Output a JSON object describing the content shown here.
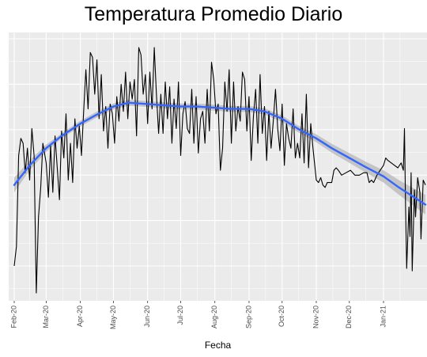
{
  "chart_data": {
    "type": "line",
    "title": "Temperatura Promedio Diario",
    "xlabel": "Fecha",
    "ylabel": "",
    "x_ticks": [
      "Feb-20",
      "Mar-20",
      "Apr-20",
      "May-20",
      "Jun-20",
      "Jul-20",
      "Aug-20",
      "Sep-20",
      "Oct-20",
      "Nov-20",
      "Dec-20",
      "Jan-21"
    ],
    "x_range": [
      "2020-02-01",
      "2021-02-08"
    ],
    "y_range": [
      0,
      100
    ],
    "y_ticks_shown": false,
    "grid": true,
    "series": [
      {
        "kind": "daily",
        "color": "#000000",
        "points": [
          [
            "2020-02-01",
            10
          ],
          [
            "2020-02-03",
            18
          ],
          [
            "2020-02-05",
            55
          ],
          [
            "2020-02-07",
            62
          ],
          [
            "2020-02-09",
            60
          ],
          [
            "2020-02-11",
            48
          ],
          [
            "2020-02-13",
            58
          ],
          [
            "2020-02-15",
            45
          ],
          [
            "2020-02-17",
            66
          ],
          [
            "2020-02-19",
            55
          ],
          [
            "2020-02-21",
            -1
          ],
          [
            "2020-02-23",
            30
          ],
          [
            "2020-02-25",
            42
          ],
          [
            "2020-02-27",
            60
          ],
          [
            "2020-03-01",
            52
          ],
          [
            "2020-03-03",
            38
          ],
          [
            "2020-03-05",
            59
          ],
          [
            "2020-03-07",
            40
          ],
          [
            "2020-03-09",
            63
          ],
          [
            "2020-03-11",
            50
          ],
          [
            "2020-03-13",
            37
          ],
          [
            "2020-03-15",
            65
          ],
          [
            "2020-03-17",
            54
          ],
          [
            "2020-03-19",
            72
          ],
          [
            "2020-03-21",
            45
          ],
          [
            "2020-03-23",
            60
          ],
          [
            "2020-03-25",
            44
          ],
          [
            "2020-03-27",
            70
          ],
          [
            "2020-03-29",
            58
          ],
          [
            "2020-03-31",
            67
          ],
          [
            "2020-04-02",
            55
          ],
          [
            "2020-04-04",
            73
          ],
          [
            "2020-04-06",
            90
          ],
          [
            "2020-04-08",
            74
          ],
          [
            "2020-04-10",
            97
          ],
          [
            "2020-04-12",
            95
          ],
          [
            "2020-04-14",
            80
          ],
          [
            "2020-04-16",
            94
          ],
          [
            "2020-04-18",
            70
          ],
          [
            "2020-04-20",
            88
          ],
          [
            "2020-04-22",
            65
          ],
          [
            "2020-04-24",
            75
          ],
          [
            "2020-04-26",
            58
          ],
          [
            "2020-04-28",
            76
          ],
          [
            "2020-04-30",
            72
          ],
          [
            "2020-05-02",
            60
          ],
          [
            "2020-05-04",
            79
          ],
          [
            "2020-05-06",
            69
          ],
          [
            "2020-05-08",
            84
          ],
          [
            "2020-05-10",
            73
          ],
          [
            "2020-05-12",
            89
          ],
          [
            "2020-05-14",
            70
          ],
          [
            "2020-05-16",
            85
          ],
          [
            "2020-05-18",
            78
          ],
          [
            "2020-05-20",
            86
          ],
          [
            "2020-05-22",
            63
          ],
          [
            "2020-05-24",
            99
          ],
          [
            "2020-05-26",
            96
          ],
          [
            "2020-05-28",
            80
          ],
          [
            "2020-05-30",
            88
          ],
          [
            "2020-06-01",
            68
          ],
          [
            "2020-06-03",
            89
          ],
          [
            "2020-06-05",
            74
          ],
          [
            "2020-06-07",
            99
          ],
          [
            "2020-06-09",
            80
          ],
          [
            "2020-06-11",
            64
          ],
          [
            "2020-06-13",
            80
          ],
          [
            "2020-06-15",
            64
          ],
          [
            "2020-06-17",
            85
          ],
          [
            "2020-06-19",
            70
          ],
          [
            "2020-06-21",
            83
          ],
          [
            "2020-06-23",
            60
          ],
          [
            "2020-06-25",
            78
          ],
          [
            "2020-06-27",
            66
          ],
          [
            "2020-06-29",
            85
          ],
          [
            "2020-07-01",
            55
          ],
          [
            "2020-07-03",
            72
          ],
          [
            "2020-07-05",
            77
          ],
          [
            "2020-07-07",
            66
          ],
          [
            "2020-07-09",
            64
          ],
          [
            "2020-07-11",
            82
          ],
          [
            "2020-07-13",
            60
          ],
          [
            "2020-07-15",
            79
          ],
          [
            "2020-07-17",
            56
          ],
          [
            "2020-07-19",
            70
          ],
          [
            "2020-07-21",
            73
          ],
          [
            "2020-07-23",
            60
          ],
          [
            "2020-07-25",
            82
          ],
          [
            "2020-07-27",
            65
          ],
          [
            "2020-07-29",
            93
          ],
          [
            "2020-07-31",
            86
          ],
          [
            "2020-08-02",
            72
          ],
          [
            "2020-08-04",
            76
          ],
          [
            "2020-08-06",
            49
          ],
          [
            "2020-08-08",
            58
          ],
          [
            "2020-08-10",
            85
          ],
          [
            "2020-08-12",
            73
          ],
          [
            "2020-08-14",
            90
          ],
          [
            "2020-08-16",
            60
          ],
          [
            "2020-08-18",
            85
          ],
          [
            "2020-08-20",
            65
          ],
          [
            "2020-08-22",
            75
          ],
          [
            "2020-08-24",
            69
          ],
          [
            "2020-08-26",
            89
          ],
          [
            "2020-08-28",
            86
          ],
          [
            "2020-08-30",
            65
          ],
          [
            "2020-09-01",
            79
          ],
          [
            "2020-09-03",
            53
          ],
          [
            "2020-09-05",
            71
          ],
          [
            "2020-09-07",
            82
          ],
          [
            "2020-09-09",
            60
          ],
          [
            "2020-09-11",
            88
          ],
          [
            "2020-09-13",
            64
          ],
          [
            "2020-09-15",
            75
          ],
          [
            "2020-09-17",
            53
          ],
          [
            "2020-09-19",
            73
          ],
          [
            "2020-09-21",
            58
          ],
          [
            "2020-09-23",
            69
          ],
          [
            "2020-09-25",
            82
          ],
          [
            "2020-09-27",
            66
          ],
          [
            "2020-09-29",
            57
          ],
          [
            "2020-10-01",
            76
          ],
          [
            "2020-10-03",
            51
          ],
          [
            "2020-10-05",
            68
          ],
          [
            "2020-10-07",
            62
          ],
          [
            "2020-10-09",
            58
          ],
          [
            "2020-10-11",
            74
          ],
          [
            "2020-10-13",
            54
          ],
          [
            "2020-10-15",
            60
          ],
          [
            "2020-10-17",
            54
          ],
          [
            "2020-10-19",
            72
          ],
          [
            "2020-10-21",
            52
          ],
          [
            "2020-10-23",
            80
          ],
          [
            "2020-10-25",
            50
          ],
          [
            "2020-10-27",
            68
          ],
          [
            "2020-10-29",
            58
          ],
          [
            "2020-11-01",
            45
          ],
          [
            "2020-11-03",
            44
          ],
          [
            "2020-11-05",
            46
          ],
          [
            "2020-11-07",
            43
          ],
          [
            "2020-11-09",
            42
          ],
          [
            "2020-11-11",
            44
          ],
          [
            "2020-11-13",
            44
          ],
          [
            "2020-11-15",
            44
          ],
          [
            "2020-11-17",
            49
          ],
          [
            "2020-11-19",
            50
          ],
          [
            "2020-11-21",
            49
          ],
          [
            "2020-11-24",
            47
          ],
          [
            "2020-11-28",
            48
          ],
          [
            "2020-12-02",
            49
          ],
          [
            "2020-12-06",
            47
          ],
          [
            "2020-12-10",
            47
          ],
          [
            "2020-12-14",
            48
          ],
          [
            "2020-12-17",
            48
          ],
          [
            "2020-12-19",
            44
          ],
          [
            "2020-12-21",
            45
          ],
          [
            "2020-12-23",
            44
          ],
          [
            "2020-12-26",
            47
          ],
          [
            "2020-12-29",
            49
          ],
          [
            "2021-01-01",
            51
          ],
          [
            "2021-01-03",
            54
          ],
          [
            "2021-01-05",
            53
          ],
          [
            "2021-01-08",
            52
          ],
          [
            "2021-01-11",
            51
          ],
          [
            "2021-01-14",
            50
          ],
          [
            "2021-01-17",
            52
          ],
          [
            "2021-01-19",
            49
          ],
          [
            "2021-01-20",
            66
          ],
          [
            "2021-01-21",
            34
          ],
          [
            "2021-01-22",
            9
          ],
          [
            "2021-01-24",
            34
          ],
          [
            "2021-01-25",
            22
          ],
          [
            "2021-01-26",
            48
          ],
          [
            "2021-01-27",
            8
          ],
          [
            "2021-01-29",
            41
          ],
          [
            "2021-01-30",
            30
          ],
          [
            "2021-02-01",
            46
          ],
          [
            "2021-02-03",
            40
          ],
          [
            "2021-02-04",
            21
          ],
          [
            "2021-02-06",
            45
          ],
          [
            "2021-02-08",
            43
          ]
        ]
      },
      {
        "kind": "smooth",
        "color": "#3366ff",
        "band_color": "#bdbdbd",
        "points": [
          [
            "2020-02-01",
            43,
            40,
            46
          ],
          [
            "2020-02-15",
            51,
            49,
            53
          ],
          [
            "2020-03-01",
            58,
            56.5,
            59.5
          ],
          [
            "2020-03-15",
            63,
            62,
            64
          ],
          [
            "2020-04-01",
            68,
            66.8,
            69.2
          ],
          [
            "2020-04-15",
            71.5,
            70.3,
            72.7
          ],
          [
            "2020-05-01",
            75,
            73.8,
            76.2
          ],
          [
            "2020-05-15",
            76.5,
            75.3,
            77.7
          ],
          [
            "2020-06-01",
            76,
            74.8,
            77.2
          ],
          [
            "2020-06-15",
            75.5,
            74.3,
            76.7
          ],
          [
            "2020-07-01",
            75,
            73.8,
            76.2
          ],
          [
            "2020-07-15",
            75,
            73.8,
            76.2
          ],
          [
            "2020-08-01",
            74.5,
            73.3,
            75.7
          ],
          [
            "2020-08-15",
            74,
            72.8,
            75.2
          ],
          [
            "2020-09-01",
            74,
            72.8,
            75.2
          ],
          [
            "2020-09-15",
            73,
            71.7,
            74.3
          ],
          [
            "2020-10-01",
            70,
            68.7,
            71.3
          ],
          [
            "2020-10-15",
            66,
            64.6,
            67.4
          ],
          [
            "2020-11-01",
            62,
            60.4,
            63.6
          ],
          [
            "2020-11-15",
            58,
            56.2,
            59.8
          ],
          [
            "2020-12-01",
            54,
            52,
            56
          ],
          [
            "2020-12-15",
            50.5,
            48.3,
            52.7
          ],
          [
            "2021-01-01",
            46.5,
            44,
            49
          ],
          [
            "2021-01-15",
            42,
            39,
            45
          ],
          [
            "2021-02-08",
            35,
            31,
            39
          ]
        ]
      }
    ]
  }
}
